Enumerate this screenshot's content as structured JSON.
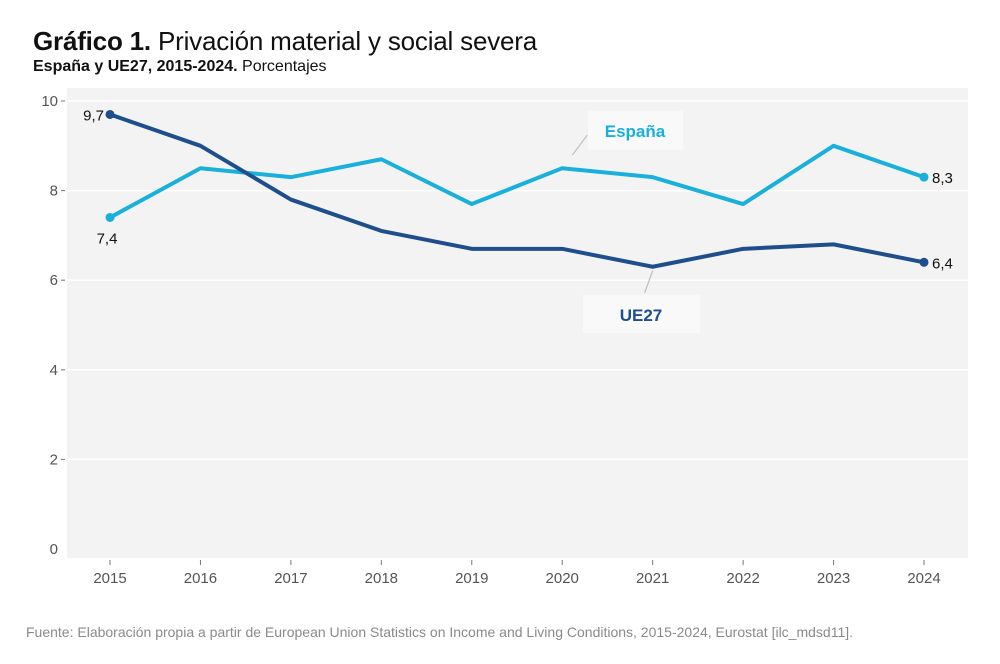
{
  "header": {
    "title_bold": "Gráfico 1.",
    "title_rest": "Privación material y social severa",
    "subtitle_bold": "España y UE27, 2015-2024.",
    "subtitle_rest": "Porcentajes"
  },
  "footer": {
    "source": "Fuente: Elaboración propia a partir de European Union Statistics on Income and Living Conditions, 2015-2024, Eurostat [ilc_mdsd11]."
  },
  "colors": {
    "espana": "#1ab0dc",
    "ue27": "#1f4e8c",
    "plot_background": "#f3f3f3",
    "gridline": "#ffffff",
    "label_box": "#f9f9f9",
    "leader_line": "#bdbdbd"
  },
  "chart_data": {
    "type": "line",
    "title": "Gráfico 1. Privación material y social severa",
    "subtitle": "España y UE27, 2015-2024. Porcentajes",
    "xlabel": "",
    "ylabel": "",
    "x": [
      "2015",
      "2016",
      "2017",
      "2018",
      "2019",
      "2020",
      "2021",
      "2022",
      "2023",
      "2024"
    ],
    "ylim": [
      0,
      10
    ],
    "yticks": [
      "0",
      "2",
      "4",
      "6",
      "8",
      "10"
    ],
    "grid": true,
    "legend": "direct labels on lines",
    "series": [
      {
        "name": "España",
        "values": [
          7.4,
          8.5,
          8.3,
          8.7,
          7.7,
          8.5,
          8.3,
          7.7,
          9.0,
          8.3
        ],
        "end_labels": {
          "first": "7,4",
          "last": "8,3"
        }
      },
      {
        "name": "UE27",
        "values": [
          9.7,
          9.0,
          7.8,
          7.1,
          6.7,
          6.7,
          6.3,
          6.7,
          6.8,
          6.4
        ],
        "end_labels": {
          "first": "9,7",
          "last": "6,4"
        }
      }
    ]
  }
}
